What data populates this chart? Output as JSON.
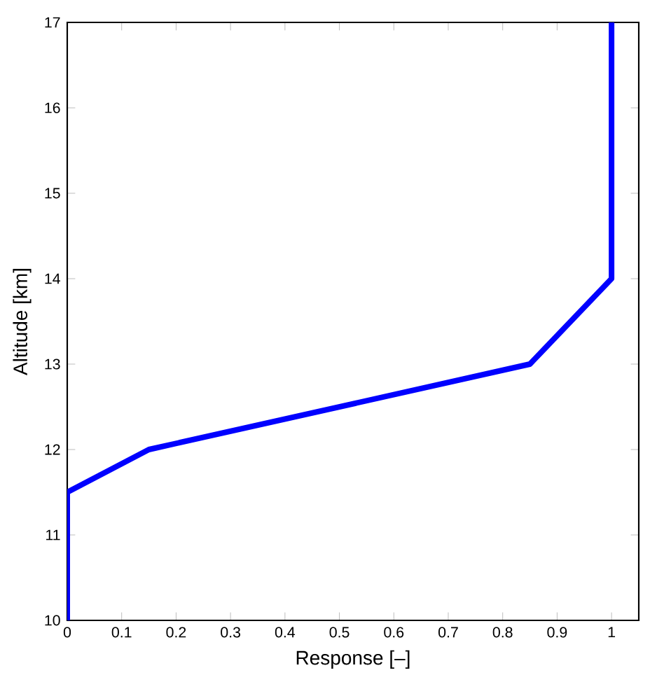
{
  "chart_data": {
    "type": "line",
    "xlabel": "Response [–]",
    "ylabel": "Altitude [km]",
    "x": [
      0,
      0,
      0.15,
      0.85,
      1,
      1
    ],
    "series": [
      {
        "color": "#0000ff",
        "values": [
          10,
          11.5,
          12,
          13,
          14,
          17
        ]
      }
    ],
    "xlim": [
      0,
      1.05
    ],
    "ylim": [
      10,
      17
    ],
    "xticks": [
      0,
      0.1,
      0.2,
      0.3,
      0.4,
      0.5,
      0.6,
      0.7,
      0.8,
      0.9,
      1
    ],
    "yticks": [
      10,
      11,
      12,
      13,
      14,
      15,
      16,
      17
    ],
    "grid": false,
    "marker": "none",
    "line_style": "solid"
  }
}
